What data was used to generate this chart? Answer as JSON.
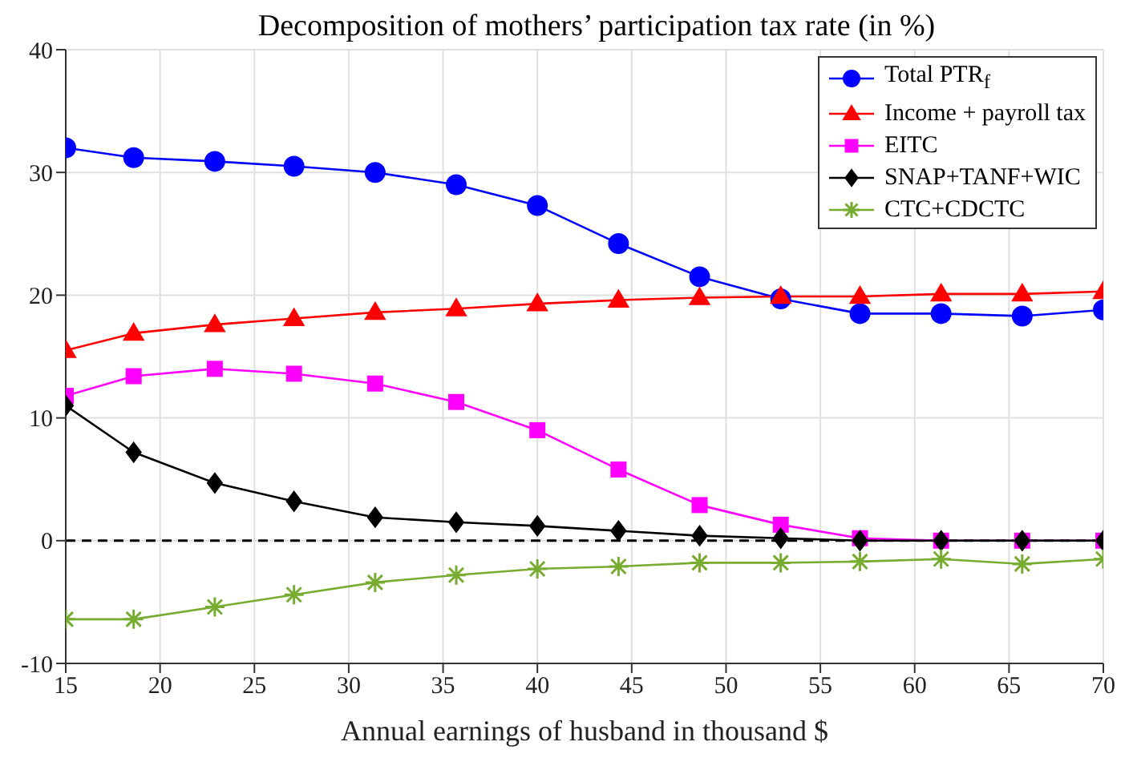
{
  "chart_data": {
    "type": "line",
    "title": "Decomposition of mothers’ participation tax rate (in %)",
    "xlabel": "Annual earnings of husband in thousand $",
    "x": [
      15,
      18.6,
      22.9,
      27.1,
      31.4,
      35.7,
      40,
      44.3,
      48.6,
      52.9,
      57.1,
      61.4,
      65.7,
      70
    ],
    "series": [
      {
        "name": "Total PTR$_{f}$",
        "color": "#0000ff",
        "marker": "circle",
        "values": [
          32.0,
          31.2,
          30.9,
          30.5,
          30.0,
          29.0,
          27.3,
          24.2,
          21.5,
          19.7,
          18.5,
          18.5,
          18.3,
          18.8
        ]
      },
      {
        "name": "Income + payroll tax",
        "color": "#ff0000",
        "marker": "triangle",
        "values": [
          15.5,
          16.9,
          17.6,
          18.1,
          18.6,
          18.9,
          19.3,
          19.6,
          19.8,
          19.9,
          19.9,
          20.1,
          20.1,
          20.3
        ]
      },
      {
        "name": "EITC",
        "color": "#ff00ff",
        "marker": "square",
        "values": [
          11.8,
          13.4,
          14.0,
          13.6,
          12.8,
          11.3,
          9.0,
          5.8,
          2.9,
          1.3,
          0.2,
          0,
          0,
          0
        ]
      },
      {
        "name": "SNAP+TANF+WIC",
        "color": "#000000",
        "marker": "diamond",
        "values": [
          11.0,
          7.2,
          4.7,
          3.2,
          1.9,
          1.5,
          1.2,
          0.8,
          0.4,
          0.2,
          0,
          0,
          0,
          0
        ]
      },
      {
        "name": "CTC+CDCTC",
        "color": "#77ac30",
        "marker": "cross",
        "values": [
          -6.4,
          -6.4,
          -5.4,
          -4.4,
          -3.4,
          -2.8,
          -2.3,
          -2.1,
          -1.8,
          -1.8,
          -1.7,
          -1.5,
          -1.9,
          -1.5
        ]
      }
    ],
    "xlim": [
      15,
      70
    ],
    "xticks": [
      15,
      20,
      25,
      30,
      35,
      40,
      45,
      50,
      55,
      60,
      65,
      70
    ],
    "ylim": [
      -10,
      40
    ],
    "yticks": [
      -10,
      0,
      10,
      20,
      30,
      40
    ],
    "ref_lines": [
      {
        "axis": "y",
        "value": 0,
        "color": "#000000",
        "line_style": "dashed"
      }
    ],
    "grid": true,
    "legend": "top right",
    "line_style": "solid"
  }
}
